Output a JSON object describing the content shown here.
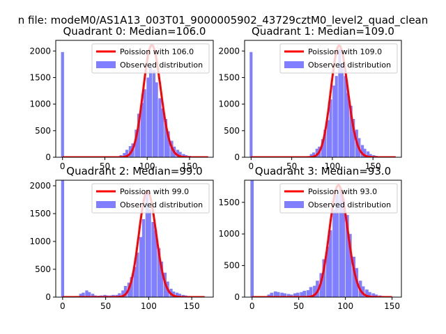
{
  "figure": {
    "suptitle": "n file: modeM0/AS1A13_003T01_9000005902_43729cztM0_level2_quad_clean"
  },
  "colors": {
    "histogram": "#7f7fff",
    "poisson": "#ff0000"
  },
  "chart_data": [
    {
      "type": "bar",
      "title": "Quadrant 0: Median=106.0",
      "legend": [
        "Poission with 106.0",
        "Observed distribution"
      ],
      "legend_placement": "upper right",
      "xlim": [
        -8,
        178
      ],
      "ylim": [
        0,
        2200
      ],
      "xticks": [
        0,
        50,
        100,
        150
      ],
      "yticks": [
        0,
        500,
        1000,
        1500,
        2000
      ],
      "bin_width": 3.5,
      "histogram": [
        [
          0,
          1980
        ],
        [
          38,
          3
        ],
        [
          45,
          3
        ],
        [
          55,
          4
        ],
        [
          62,
          6
        ],
        [
          66,
          18
        ],
        [
          69,
          40
        ],
        [
          73,
          80
        ],
        [
          76,
          140
        ],
        [
          80,
          210
        ],
        [
          83,
          260
        ],
        [
          87,
          520
        ],
        [
          90,
          820
        ],
        [
          94,
          1020
        ],
        [
          97,
          1280
        ],
        [
          101,
          1500
        ],
        [
          104,
          1710
        ],
        [
          108,
          1640
        ],
        [
          111,
          1410
        ],
        [
          115,
          1110
        ],
        [
          118,
          920
        ],
        [
          122,
          720
        ],
        [
          125,
          490
        ],
        [
          129,
          310
        ],
        [
          132,
          200
        ],
        [
          136,
          140
        ],
        [
          139,
          100
        ],
        [
          143,
          60
        ],
        [
          146,
          40
        ],
        [
          150,
          26
        ],
        [
          153,
          18
        ],
        [
          157,
          10
        ],
        [
          160,
          8
        ],
        [
          164,
          4
        ],
        [
          170,
          3
        ]
      ],
      "poisson_mean": 106.0,
      "poisson_peak": 2110,
      "poisson_x_range": [
        0,
        172
      ]
    },
    {
      "type": "bar",
      "title": "Quadrant 1: Median=109.0",
      "legend": [
        "Poission with 109.0",
        "Observed distribution"
      ],
      "legend_placement": "upper right",
      "xlim": [
        -8,
        185
      ],
      "ylim": [
        0,
        2200
      ],
      "xticks": [
        0,
        50,
        100,
        150
      ],
      "yticks": [
        0,
        500,
        1000,
        1500,
        2000
      ],
      "bin_width": 3.5,
      "histogram": [
        [
          0,
          1980
        ],
        [
          40,
          20
        ],
        [
          62,
          5
        ],
        [
          70,
          20
        ],
        [
          74,
          60
        ],
        [
          77,
          90
        ],
        [
          81,
          160
        ],
        [
          84,
          200
        ],
        [
          88,
          340
        ],
        [
          91,
          520
        ],
        [
          95,
          700
        ],
        [
          98,
          1090
        ],
        [
          102,
          1350
        ],
        [
          105,
          1530
        ],
        [
          109,
          2040
        ],
        [
          112,
          1760
        ],
        [
          116,
          1530
        ],
        [
          119,
          1210
        ],
        [
          123,
          970
        ],
        [
          126,
          720
        ],
        [
          130,
          520
        ],
        [
          133,
          360
        ],
        [
          137,
          230
        ],
        [
          140,
          160
        ],
        [
          144,
          110
        ],
        [
          147,
          60
        ],
        [
          151,
          40
        ],
        [
          154,
          26
        ],
        [
          158,
          14
        ],
        [
          161,
          10
        ],
        [
          165,
          6
        ],
        [
          170,
          3
        ],
        [
          176,
          2
        ]
      ],
      "poisson_mean": 109.0,
      "poisson_peak": 2100,
      "poisson_x_range": [
        0,
        178
      ]
    },
    {
      "type": "bar",
      "title": "Quadrant 2: Median=99.0",
      "legend": [
        "Poission with 99.0",
        "Observed distribution"
      ],
      "legend_placement": "upper right",
      "xlim": [
        -8,
        175
      ],
      "ylim": [
        0,
        2100
      ],
      "xticks": [
        0,
        50,
        100,
        150
      ],
      "yticks": [
        0,
        500,
        1000,
        1500,
        2000
      ],
      "bin_width": 3.5,
      "histogram": [
        [
          0,
          2100
        ],
        [
          17,
          20
        ],
        [
          21,
          60
        ],
        [
          24,
          80
        ],
        [
          28,
          120
        ],
        [
          31,
          90
        ],
        [
          35,
          60
        ],
        [
          38,
          30
        ],
        [
          42,
          25
        ],
        [
          45,
          30
        ],
        [
          49,
          40
        ],
        [
          52,
          30
        ],
        [
          56,
          30
        ],
        [
          59,
          40
        ],
        [
          63,
          40
        ],
        [
          66,
          70
        ],
        [
          70,
          120
        ],
        [
          73,
          200
        ],
        [
          77,
          260
        ],
        [
          80,
          360
        ],
        [
          84,
          540
        ],
        [
          87,
          800
        ],
        [
          91,
          1080
        ],
        [
          94,
          1400
        ],
        [
          98,
          1880
        ],
        [
          101,
          1580
        ],
        [
          105,
          1350
        ],
        [
          108,
          1200
        ],
        [
          112,
          880
        ],
        [
          115,
          640
        ],
        [
          119,
          440
        ],
        [
          122,
          280
        ],
        [
          126,
          150
        ],
        [
          129,
          100
        ],
        [
          133,
          80
        ],
        [
          136,
          60
        ],
        [
          140,
          40
        ],
        [
          143,
          30
        ],
        [
          147,
          20
        ],
        [
          150,
          12
        ],
        [
          154,
          8
        ],
        [
          158,
          5
        ],
        [
          162,
          3
        ]
      ],
      "poisson_mean": 99.0,
      "poisson_peak": 1900,
      "poisson_x_range": [
        0,
        165
      ]
    },
    {
      "type": "bar",
      "title": "Quadrant 3: Median=93.0",
      "legend": [
        "Poission with 93.0",
        "Observed distribution"
      ],
      "legend_placement": "upper right",
      "xlim": [
        -8,
        160
      ],
      "ylim": [
        0,
        1850
      ],
      "xticks": [
        0,
        50,
        100,
        150
      ],
      "yticks": [
        0,
        500,
        1000,
        1500
      ],
      "bin_width": 3.5,
      "histogram": [
        [
          0,
          1850
        ],
        [
          18,
          40
        ],
        [
          21,
          70
        ],
        [
          25,
          90
        ],
        [
          28,
          80
        ],
        [
          32,
          70
        ],
        [
          35,
          60
        ],
        [
          39,
          50
        ],
        [
          42,
          40
        ],
        [
          46,
          60
        ],
        [
          49,
          70
        ],
        [
          53,
          80
        ],
        [
          56,
          100
        ],
        [
          60,
          110
        ],
        [
          63,
          160
        ],
        [
          67,
          180
        ],
        [
          70,
          260
        ],
        [
          74,
          380
        ],
        [
          77,
          600
        ],
        [
          81,
          800
        ],
        [
          84,
          1060
        ],
        [
          88,
          1380
        ],
        [
          91,
          1620
        ],
        [
          95,
          1720
        ],
        [
          98,
          1560
        ],
        [
          102,
          1300
        ],
        [
          105,
          1000
        ],
        [
          109,
          640
        ],
        [
          112,
          460
        ],
        [
          116,
          260
        ],
        [
          119,
          170
        ],
        [
          123,
          120
        ],
        [
          126,
          80
        ],
        [
          130,
          60
        ],
        [
          133,
          40
        ],
        [
          137,
          26
        ],
        [
          140,
          18
        ],
        [
          144,
          10
        ],
        [
          148,
          5
        ]
      ],
      "poisson_mean": 93.0,
      "poisson_peak": 1770,
      "poisson_x_range": [
        0,
        150
      ]
    }
  ]
}
